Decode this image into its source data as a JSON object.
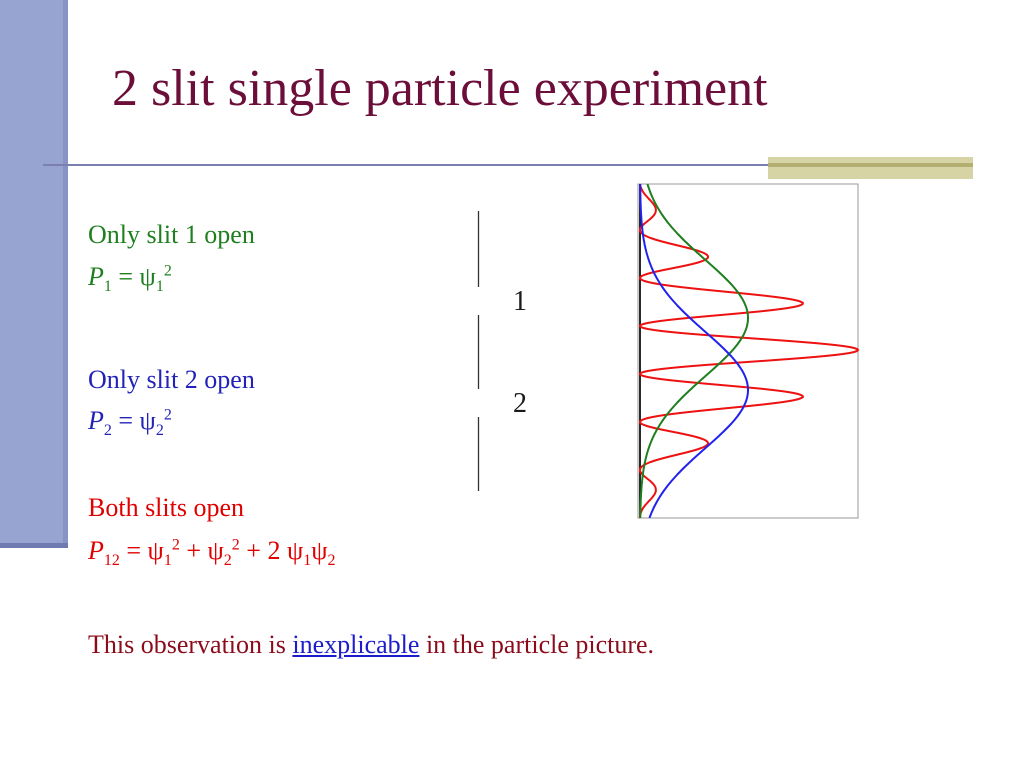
{
  "slide": {
    "title": "2 slit single particle experiment"
  },
  "content": {
    "slit1": {
      "label": "Only slit 1 open",
      "eq_P": "P",
      "eq_P_sub": "1",
      "eq_rhs": " = ψ",
      "eq_psi_sub": "1",
      "eq_psi_sup": "2"
    },
    "slit2": {
      "label": "Only slit 2 open",
      "eq_P": "P",
      "eq_P_sub": "2",
      "eq_rhs": " = ψ",
      "eq_psi_sub": "2",
      "eq_psi_sup": "2"
    },
    "both": {
      "label": "Both slits open",
      "eq_P": "P",
      "eq_P_sub": "12",
      "t1": " = ψ",
      "t1_sub": "1",
      "t1_sup": "2",
      "t2": " + ψ",
      "t2_sub": "2",
      "t2_sup": "2",
      "t3": " + 2 ψ",
      "t3_sub": "1",
      "t4": "ψ",
      "t4_sub": "2"
    },
    "observation": {
      "before": "This observation is ",
      "link": "inexplicable",
      "after": " in the particle picture."
    }
  },
  "diagram": {
    "slit_labels": [
      "1",
      "2"
    ],
    "colors": {
      "slit1_curve": "#1f7f1f",
      "slit2_curve": "#2222ee",
      "interference_curve": "#ee1111"
    }
  }
}
